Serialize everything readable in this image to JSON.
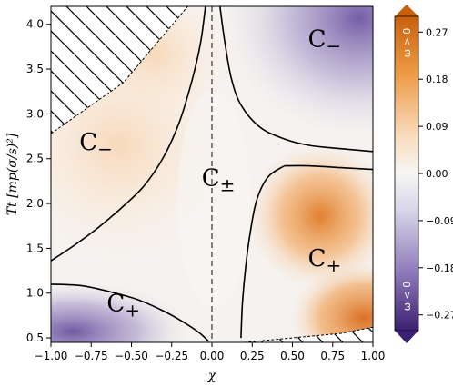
{
  "chart_data": {
    "type": "heatmap",
    "title": "",
    "xlabel": "χ",
    "ylabel": "T̄t [mp(σ/s)²]",
    "xlim": [
      -1.0,
      1.0
    ],
    "ylim": [
      0.45,
      4.2
    ],
    "x_ticks": [
      "−1.00",
      "−0.75",
      "−0.50",
      "−0.25",
      "0.00",
      "0.25",
      "0.50",
      "0.75",
      "1.00"
    ],
    "y_ticks": [
      "0.5",
      "1.0",
      "1.5",
      "2.0",
      "2.5",
      "3.0",
      "3.5",
      "4.0"
    ],
    "colorbar": {
      "range": [
        -0.3,
        0.3
      ],
      "ticks": [
        "0.27",
        "0.18",
        "0.09",
        "0.00",
        "−0.09",
        "−0.18",
        "−0.27"
      ],
      "tick_values": [
        0.27,
        0.18,
        0.09,
        0.0,
        -0.09,
        -0.18,
        -0.27
      ],
      "top_annotation": "ω > 0",
      "bottom_annotation": "ω < 0",
      "colors": {
        "positive": "#d9640e",
        "zero": "#f7f6f4",
        "negative": "#4a2b85"
      }
    },
    "grid": false,
    "regions": [
      {
        "label": "C−",
        "x": 0.7,
        "y": 3.75
      },
      {
        "label": "C−",
        "x": -0.72,
        "y": 2.6
      },
      {
        "label": "C±",
        "x": 0.04,
        "y": 2.2
      },
      {
        "label": "C+",
        "x": 0.7,
        "y": 1.3
      },
      {
        "label": "C+",
        "x": -0.55,
        "y": 0.8
      }
    ],
    "reference_line": {
      "x": 0.0,
      "style": "dashed"
    },
    "contours": [
      {
        "name": "upper-left",
        "x": [
          -1.0,
          -0.85,
          -0.7,
          -0.55,
          -0.42,
          -0.3,
          -0.2,
          -0.12,
          -0.07,
          -0.04
        ],
        "y": [
          1.36,
          1.54,
          1.74,
          1.97,
          2.2,
          2.52,
          2.92,
          3.4,
          3.8,
          4.2
        ]
      },
      {
        "name": "upper-right",
        "x": [
          0.05,
          0.08,
          0.12,
          0.18,
          0.3,
          0.45,
          0.6,
          0.75,
          1.0
        ],
        "y": [
          4.2,
          3.8,
          3.4,
          3.1,
          2.85,
          2.72,
          2.65,
          2.62,
          2.58
        ]
      },
      {
        "name": "lower-left",
        "x": [
          -1.0,
          -0.8,
          -0.6,
          -0.45,
          -0.3,
          -0.18,
          -0.08,
          -0.02
        ],
        "y": [
          1.1,
          1.08,
          1.0,
          0.92,
          0.8,
          0.68,
          0.56,
          0.46
        ]
      },
      {
        "name": "lower-right",
        "x": [
          0.45,
          0.6,
          0.8,
          1.0
        ],
        "y": [
          2.42,
          2.42,
          2.4,
          2.38
        ]
      },
      {
        "name": "lower-right-2",
        "x": [
          0.45,
          0.35,
          0.28,
          0.24,
          0.21,
          0.19,
          0.18
        ],
        "y": [
          2.42,
          2.3,
          2.05,
          1.7,
          1.3,
          0.9,
          0.5
        ]
      }
    ],
    "hatched_regions": [
      {
        "name": "top-left",
        "vertices": [
          [
            -1.0,
            2.78
          ],
          [
            -0.55,
            3.35
          ],
          [
            -0.15,
            4.2
          ],
          [
            -1.0,
            4.2
          ]
        ]
      },
      {
        "name": "bottom-right",
        "vertices": [
          [
            0.2,
            0.45
          ],
          [
            0.8,
            0.55
          ],
          [
            1.0,
            0.62
          ],
          [
            1.0,
            0.45
          ]
        ]
      }
    ]
  }
}
